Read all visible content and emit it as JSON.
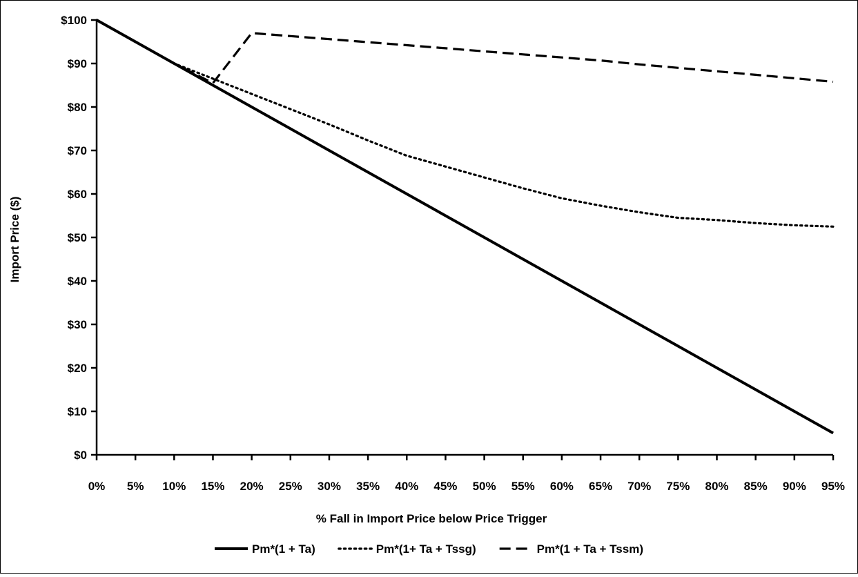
{
  "chart_data": {
    "type": "line",
    "title": "",
    "xlabel": "% Fall in Import Price below Price Trigger",
    "ylabel": "Import Price ($)",
    "x_categories": [
      "0%",
      "5%",
      "10%",
      "15%",
      "20%",
      "25%",
      "30%",
      "35%",
      "40%",
      "45%",
      "50%",
      "55%",
      "60%",
      "65%",
      "70%",
      "75%",
      "80%",
      "85%",
      "90%",
      "95%"
    ],
    "x_values": [
      0,
      5,
      10,
      15,
      20,
      25,
      30,
      35,
      40,
      45,
      50,
      55,
      60,
      65,
      70,
      75,
      80,
      85,
      90,
      95
    ],
    "xlim": [
      0,
      95
    ],
    "ylim": [
      0,
      100
    ],
    "y_ticks": [
      0,
      10,
      20,
      30,
      40,
      50,
      60,
      70,
      80,
      90,
      100
    ],
    "y_tick_labels": [
      "$0",
      "$10",
      "$20",
      "$30",
      "$40",
      "$50",
      "$60",
      "$70",
      "$80",
      "$90",
      "$100"
    ],
    "grid": false,
    "legend_position": "bottom",
    "series": [
      {
        "name": "Pm*(1 + Ta)",
        "style": "solid",
        "color": "#000000",
        "points": [
          [
            0,
            100
          ],
          [
            5,
            95
          ],
          [
            10,
            90
          ],
          [
            15,
            85
          ],
          [
            20,
            80
          ],
          [
            25,
            75
          ],
          [
            30,
            70
          ],
          [
            35,
            65
          ],
          [
            40,
            60
          ],
          [
            45,
            55
          ],
          [
            50,
            50
          ],
          [
            55,
            45
          ],
          [
            60,
            40
          ],
          [
            65,
            35
          ],
          [
            70,
            30
          ],
          [
            75,
            25
          ],
          [
            80,
            20
          ],
          [
            85,
            15
          ],
          [
            90,
            10
          ],
          [
            95,
            5
          ]
        ]
      },
      {
        "name": "Pm*(1+ Ta + Tssg)",
        "style": "dotted",
        "color": "#000000",
        "points": [
          [
            0,
            100
          ],
          [
            5,
            95
          ],
          [
            10,
            90
          ],
          [
            15,
            86.5
          ],
          [
            20,
            83
          ],
          [
            25,
            79.5
          ],
          [
            30,
            76
          ],
          [
            35,
            72.3
          ],
          [
            40,
            68.8
          ],
          [
            45,
            66.3
          ],
          [
            50,
            63.8
          ],
          [
            55,
            61.3
          ],
          [
            60,
            59
          ],
          [
            65,
            57.3
          ],
          [
            70,
            55.8
          ],
          [
            75,
            54.5
          ],
          [
            80,
            54
          ],
          [
            85,
            53.3
          ],
          [
            90,
            52.8
          ],
          [
            95,
            52.5
          ]
        ]
      },
      {
        "name": "Pm*(1 + Ta + Tssm)",
        "style": "dashed",
        "color": "#000000",
        "points": [
          [
            0,
            100
          ],
          [
            5,
            95
          ],
          [
            10,
            90
          ],
          [
            15,
            85.5
          ],
          [
            20,
            97
          ],
          [
            25,
            96.3
          ],
          [
            30,
            95.6
          ],
          [
            35,
            94.9
          ],
          [
            40,
            94.2
          ],
          [
            45,
            93.5
          ],
          [
            50,
            92.8
          ],
          [
            55,
            92.1
          ],
          [
            60,
            91.4
          ],
          [
            65,
            90.7
          ],
          [
            70,
            89.8
          ],
          [
            75,
            89
          ],
          [
            80,
            88.2
          ],
          [
            85,
            87.4
          ],
          [
            90,
            86.6
          ],
          [
            95,
            85.8
          ]
        ]
      }
    ]
  }
}
